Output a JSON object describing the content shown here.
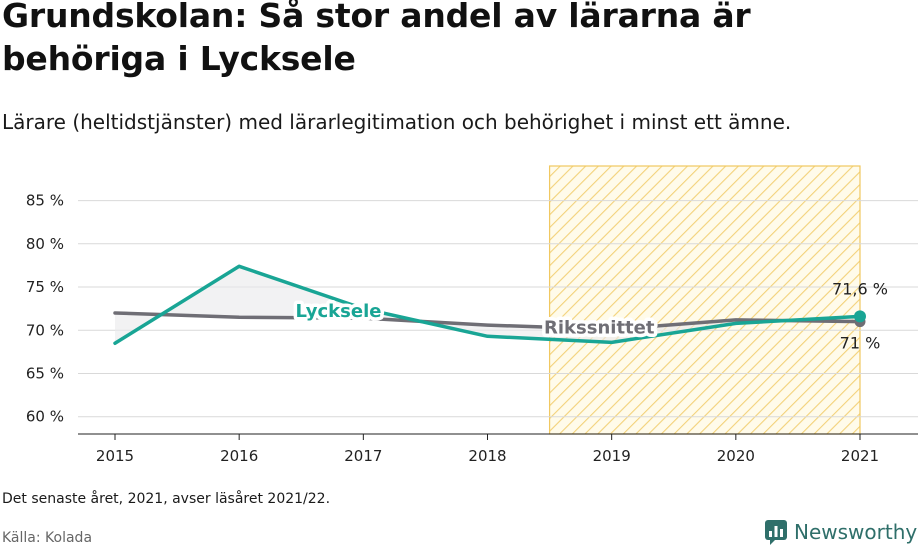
{
  "title": "Grundskolan: Så stor andel av lärarna är behöriga i Lycksele",
  "subtitle": "Lärare (heltidstjänster) med lärarlegitimation och behörighet i minst ett ämne.",
  "note": "Det senaste året, 2021, avser läsåret 2021/22.",
  "source": "Källa: Kolada",
  "brand": "Newsworthy",
  "chart_data": {
    "type": "line",
    "x": [
      2015,
      2016,
      2017,
      2018,
      2019,
      2020,
      2021
    ],
    "ylim": [
      58,
      89
    ],
    "yticks": [
      60,
      65,
      70,
      75,
      80,
      85
    ],
    "ytick_labels": [
      "60 %",
      "65 %",
      "70 %",
      "75 %",
      "80 %",
      "85 %"
    ],
    "xtick_labels": [
      "2015",
      "2016",
      "2017",
      "2018",
      "2019",
      "2020",
      "2021"
    ],
    "highlight_range": [
      2018.5,
      2021
    ],
    "grid": true,
    "series": [
      {
        "name": "Rikssnittet",
        "color": "#6f6e75",
        "values": [
          72.0,
          71.5,
          71.4,
          70.6,
          70.1,
          71.2,
          71.0
        ]
      },
      {
        "name": "Lycksele",
        "color": "#19a595",
        "values": [
          68.5,
          77.4,
          72.5,
          69.3,
          68.6,
          70.8,
          71.6
        ]
      }
    ],
    "end_labels": {
      "Lycksele": "71,6 %",
      "Rikssnittet": "71 %"
    }
  }
}
